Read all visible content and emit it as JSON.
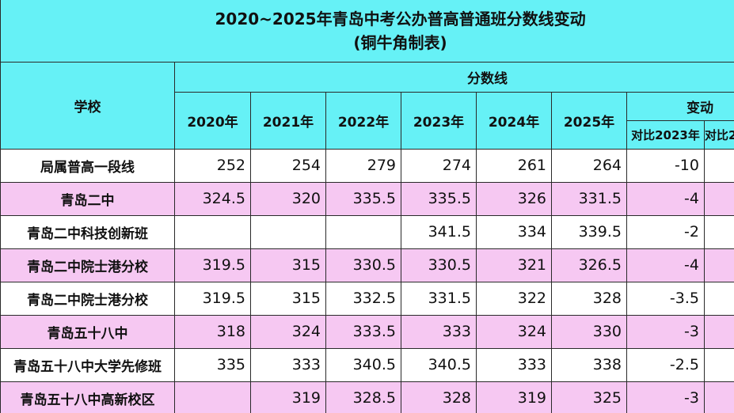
{
  "title": {
    "line1": "2020~2025年青岛中考公办普高普通班分数线变动",
    "line2": "(铜牛角制表)"
  },
  "headers": {
    "school": "学校",
    "scores": "分数线",
    "years": [
      "2020年",
      "2021年",
      "2022年",
      "2023年",
      "2024年",
      "2025年"
    ],
    "change": "变动",
    "change_sub": [
      "对比2023年",
      "对比2"
    ]
  },
  "rows": [
    {
      "school": "局属普高一段线",
      "scores": [
        "252",
        "254",
        "279",
        "274",
        "261",
        "264"
      ],
      "change": [
        "-10",
        ""
      ]
    },
    {
      "school": "青岛二中",
      "scores": [
        "324.5",
        "320",
        "335.5",
        "335.5",
        "326",
        "331.5"
      ],
      "change": [
        "-4",
        ""
      ]
    },
    {
      "school": "青岛二中科技创新班",
      "scores": [
        "",
        "",
        "",
        "341.5",
        "334",
        "339.5"
      ],
      "change": [
        "-2",
        ""
      ]
    },
    {
      "school": "青岛二中院士港分校",
      "scores": [
        "319.5",
        "315",
        "330.5",
        "330.5",
        "321",
        "326.5"
      ],
      "change": [
        "-4",
        ""
      ]
    },
    {
      "school": "青岛二中院士港分校",
      "scores": [
        "319.5",
        "315",
        "332.5",
        "331.5",
        "322",
        "328"
      ],
      "change": [
        "-3.5",
        ""
      ]
    },
    {
      "school": "青岛五十八中",
      "scores": [
        "318",
        "324",
        "333.5",
        "333",
        "324",
        "330"
      ],
      "change": [
        "-3",
        ""
      ]
    },
    {
      "school": "青岛五十八中大学先修班",
      "scores": [
        "335",
        "333",
        "340.5",
        "340.5",
        "333",
        "338"
      ],
      "change": [
        "-2.5",
        ""
      ]
    },
    {
      "school": "青岛五十八中高新校区",
      "scores": [
        "",
        "319",
        "328.5",
        "328",
        "319",
        "325"
      ],
      "change": [
        "-3",
        ""
      ]
    }
  ],
  "colors": {
    "header_bg": "#66f1f6",
    "pink_row": "#f6c8f2",
    "white_row": "#ffffff"
  }
}
